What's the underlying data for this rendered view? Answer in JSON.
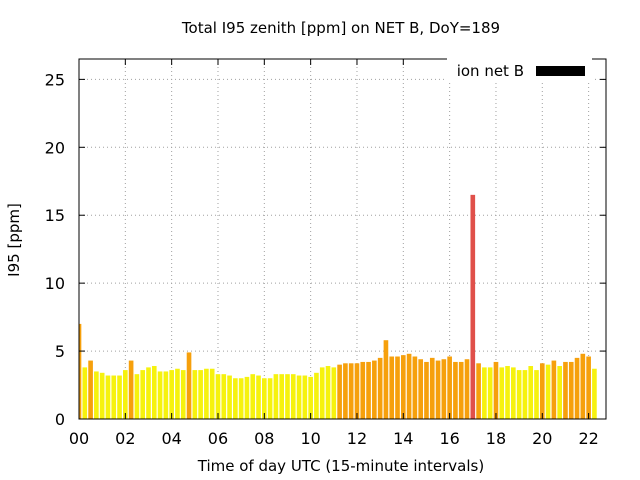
{
  "chart_data": {
    "type": "bar",
    "title": "Total I95 zenith [ppm] on NET B, DoY=189",
    "xlabel": "Time of day UTC (15-minute intervals)",
    "ylabel": "I95 [ppm]",
    "xlim": [
      0,
      22.75
    ],
    "ylim": [
      0,
      26.5
    ],
    "x_ticks": [
      0,
      2,
      4,
      6,
      8,
      10,
      12,
      14,
      16,
      18,
      20,
      22
    ],
    "x_tick_labels": [
      "00",
      "02",
      "04",
      "06",
      "08",
      "10",
      "12",
      "14",
      "16",
      "18",
      "20",
      "22"
    ],
    "y_ticks": [
      0,
      5,
      10,
      15,
      20,
      25
    ],
    "y_tick_labels": [
      "0",
      "5",
      "10",
      "15",
      "20",
      "25"
    ],
    "grid": true,
    "legend_position": "top-right",
    "series": [
      {
        "name": "ion net B",
        "legend_color": "#000000",
        "interval_hours": 0.25,
        "start_hour": 0,
        "values": [
          7.0,
          3.8,
          4.3,
          3.5,
          3.4,
          3.2,
          3.2,
          3.2,
          3.6,
          4.3,
          3.3,
          3.6,
          3.8,
          3.9,
          3.5,
          3.5,
          3.6,
          3.7,
          3.6,
          4.9,
          3.6,
          3.6,
          3.7,
          3.7,
          3.3,
          3.3,
          3.2,
          3.0,
          3.0,
          3.1,
          3.3,
          3.2,
          3.0,
          3.0,
          3.3,
          3.3,
          3.3,
          3.3,
          3.2,
          3.2,
          3.1,
          3.4,
          3.8,
          3.9,
          3.8,
          4.0,
          4.1,
          4.1,
          4.1,
          4.2,
          4.2,
          4.3,
          4.5,
          5.8,
          4.6,
          4.6,
          4.7,
          4.8,
          4.6,
          4.4,
          4.2,
          4.5,
          4.3,
          4.4,
          4.6,
          4.2,
          4.2,
          4.4,
          16.5,
          4.1,
          3.8,
          3.8,
          4.2,
          3.8,
          3.9,
          3.8,
          3.6,
          3.6,
          3.9,
          3.6,
          4.1,
          4.0,
          4.3,
          3.9,
          4.2,
          4.2,
          4.5,
          4.8,
          4.6,
          3.7
        ],
        "colors": [
          "#f6a00c",
          "#f6f20e",
          "#f6a00c",
          "#f6f20e",
          "#f6f20e",
          "#f6f20e",
          "#f6f20e",
          "#f6f20e",
          "#f6f20e",
          "#f6a00c",
          "#f6f20e",
          "#f6f20e",
          "#f6f20e",
          "#f6f20e",
          "#f6f20e",
          "#f6f20e",
          "#f6f20e",
          "#f6f20e",
          "#f6f20e",
          "#f6a00c",
          "#f6f20e",
          "#f6f20e",
          "#f6f20e",
          "#f6f20e",
          "#f6f20e",
          "#f6f20e",
          "#f6f20e",
          "#f6f20e",
          "#f6f20e",
          "#f6f20e",
          "#f6f20e",
          "#f6f20e",
          "#f6f20e",
          "#f6f20e",
          "#f6f20e",
          "#f6f20e",
          "#f6f20e",
          "#f6f20e",
          "#f6f20e",
          "#f6f20e",
          "#f6f20e",
          "#f6f20e",
          "#f6f20e",
          "#f6f20e",
          "#f6f20e",
          "#f6a00c",
          "#f6a00c",
          "#f6a00c",
          "#f6a00c",
          "#f6a00c",
          "#f6a00c",
          "#f6a00c",
          "#f6a00c",
          "#f6a00c",
          "#f6a00c",
          "#f6a00c",
          "#f6a00c",
          "#f6a00c",
          "#f6a00c",
          "#f6a00c",
          "#f6a00c",
          "#f6a00c",
          "#f6a00c",
          "#f6a00c",
          "#f6a00c",
          "#f6a00c",
          "#f6a00c",
          "#f6a00c",
          "#e0504a",
          "#f6a00c",
          "#f6f20e",
          "#f6f20e",
          "#f6a00c",
          "#f6f20e",
          "#f6f20e",
          "#f6f20e",
          "#f6f20e",
          "#f6f20e",
          "#f6f20e",
          "#f6f20e",
          "#f6a00c",
          "#f6f20e",
          "#f6a00c",
          "#f6f20e",
          "#f6a00c",
          "#f6a00c",
          "#f6a00c",
          "#f6a00c",
          "#f6a00c",
          "#f6f20e"
        ]
      }
    ]
  }
}
